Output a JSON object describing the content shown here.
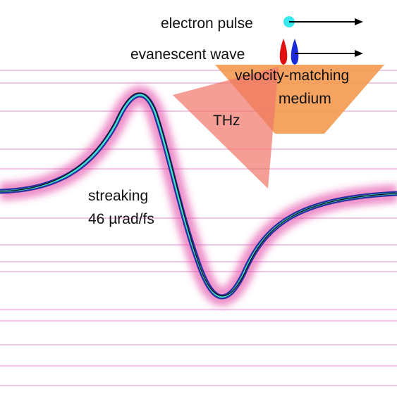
{
  "labels": {
    "electron_pulse": "electron pulse",
    "evanescent_wave": "evanescent wave",
    "medium_line1": "velocity-matching",
    "medium_line2": "medium",
    "thz": "THz",
    "streaking_line1": "streaking",
    "streaking_line2": "46 µrad/fs"
  }
}
